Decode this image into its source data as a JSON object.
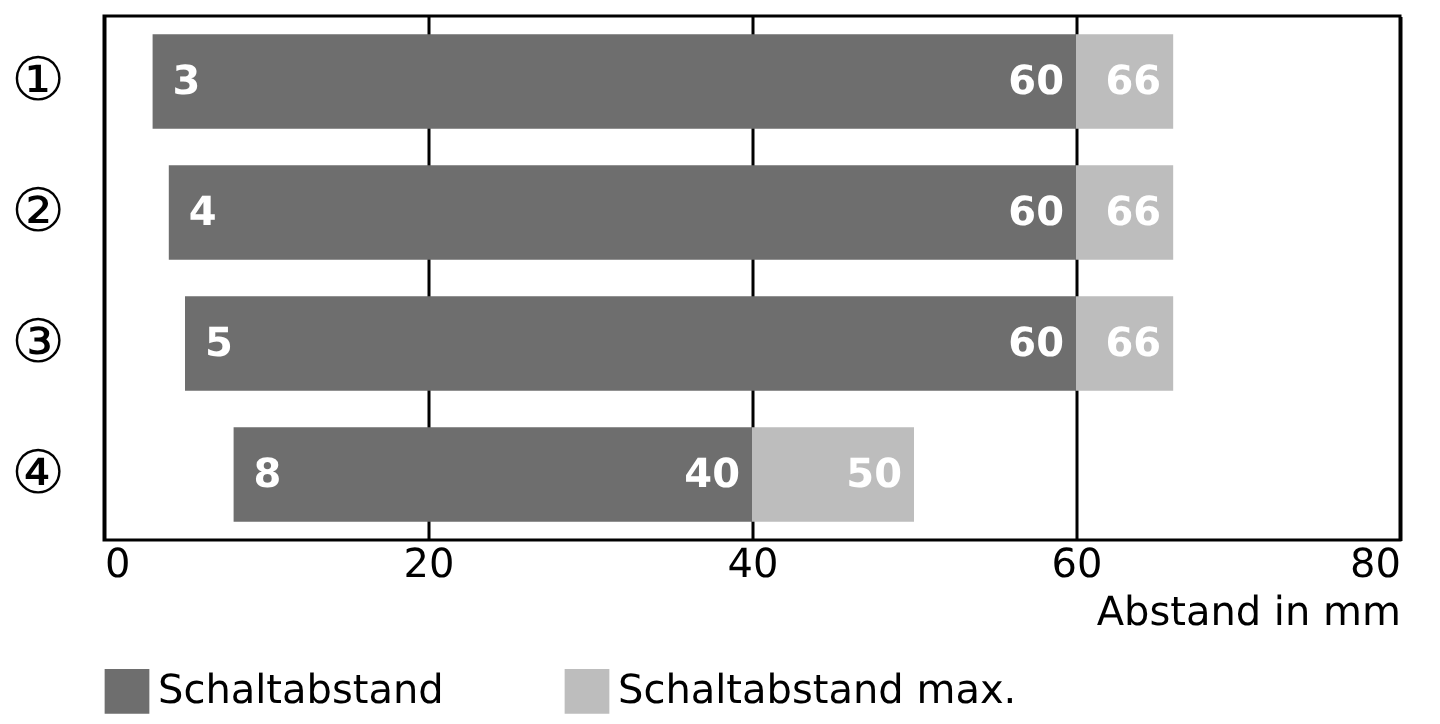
{
  "chart_data": {
    "type": "bar",
    "orientation": "horizontal",
    "xlabel": "Abstand in mm",
    "categories": [
      "①",
      "②",
      "③",
      "④"
    ],
    "series": [
      {
        "name": "Schaltabstand",
        "color": "#6e6e6e",
        "base": [
          3,
          4,
          5,
          8
        ],
        "values": [
          57,
          56,
          55,
          32
        ]
      },
      {
        "name": "Schaltabstand max.",
        "color": "#bdbdbd",
        "base": [
          60,
          60,
          60,
          40
        ],
        "values": [
          6,
          6,
          6,
          10
        ]
      }
    ],
    "annotations": [
      {
        "text": "3",
        "x": 3,
        "y": "①"
      },
      {
        "text": "60",
        "x": 60,
        "y": "①"
      },
      {
        "text": "66",
        "x": 66,
        "y": "①"
      },
      {
        "text": "4",
        "x": 4,
        "y": "②"
      },
      {
        "text": "60",
        "x": 60,
        "y": "②"
      },
      {
        "text": "66",
        "x": 66,
        "y": "②"
      },
      {
        "text": "5",
        "x": 5,
        "y": "③"
      },
      {
        "text": "60",
        "x": 60,
        "y": "③"
      },
      {
        "text": "66",
        "x": 66,
        "y": "③"
      },
      {
        "text": "8",
        "x": 8,
        "y": "④"
      },
      {
        "text": "40",
        "x": 40,
        "y": "④"
      },
      {
        "text": "50",
        "x": 50,
        "y": "④"
      }
    ],
    "xlim": [
      0,
      80
    ],
    "xticks": [
      0,
      20,
      40,
      60,
      80
    ],
    "grid": "x",
    "legend": "bottom"
  }
}
